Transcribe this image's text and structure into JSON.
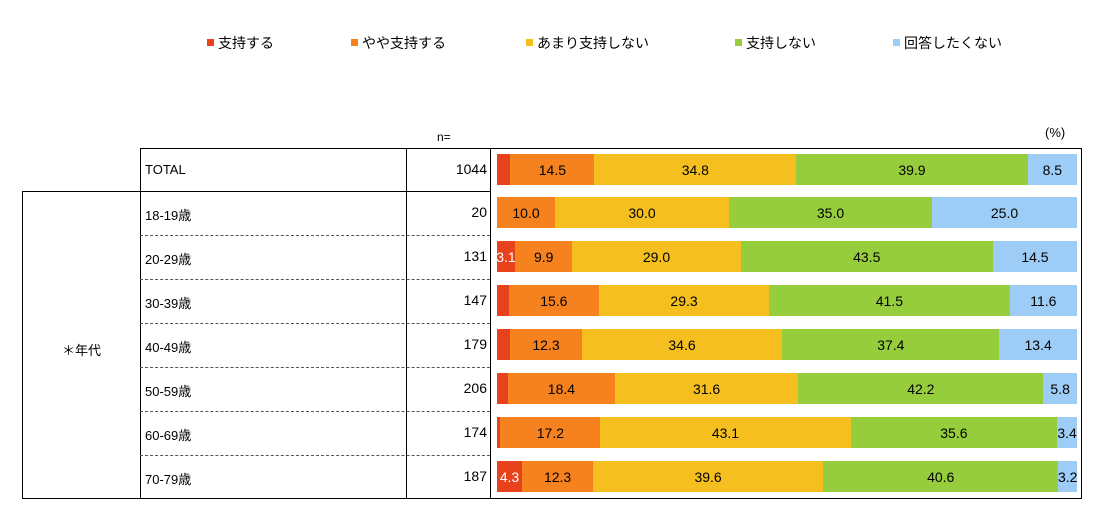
{
  "chart_data": {
    "type": "bar",
    "orientation": "horizontal",
    "stacked": true,
    "unit_label": "(%)",
    "n_header": "n=",
    "group_label": "＊年代",
    "legend": [
      {
        "name": "支持する",
        "color": "#e8421c"
      },
      {
        "name": "やや支持する",
        "color": "#f5821f"
      },
      {
        "name": "あまり支持しない",
        "color": "#f5c01f"
      },
      {
        "name": "支持しない",
        "color": "#96cd3c"
      },
      {
        "name": "回答したくない",
        "color": "#9dcdf7"
      }
    ],
    "categories": [
      "TOTAL",
      "18-19歳",
      "20-29歳",
      "30-39歳",
      "40-49歳",
      "50-59歳",
      "60-69歳",
      "70-79歳"
    ],
    "n": [
      1044,
      20,
      131,
      147,
      179,
      206,
      174,
      187
    ],
    "series": [
      {
        "name": "支持する",
        "values": [
          2.3,
          0,
          3.1,
          2.0,
          2.3,
          1.9,
          0.6,
          4.3
        ]
      },
      {
        "name": "やや支持する",
        "values": [
          14.5,
          10.0,
          9.9,
          15.6,
          12.3,
          18.4,
          17.2,
          12.3
        ]
      },
      {
        "name": "あまり支持しない",
        "values": [
          34.8,
          30.0,
          29.0,
          29.3,
          34.6,
          31.6,
          43.1,
          39.6
        ]
      },
      {
        "name": "支持しない",
        "values": [
          39.9,
          35.0,
          43.5,
          41.5,
          37.4,
          42.2,
          35.6,
          40.6
        ]
      },
      {
        "name": "回答したくない",
        "values": [
          8.5,
          25.0,
          14.5,
          11.6,
          13.4,
          5.8,
          3.4,
          3.2
        ]
      }
    ],
    "labels": [
      [
        "",
        "14.5",
        "34.8",
        "39.9",
        "8.5"
      ],
      [
        "",
        "10.0",
        "30.0",
        "35.0",
        "25.0"
      ],
      [
        "3.1",
        "9.9",
        "29.0",
        "43.5",
        "14.5"
      ],
      [
        "",
        "15.6",
        "29.3",
        "41.5",
        "11.6"
      ],
      [
        "",
        "12.3",
        "34.6",
        "37.4",
        "13.4"
      ],
      [
        "",
        "18.4",
        "31.6",
        "42.2",
        "5.8"
      ],
      [
        "",
        "17.2",
        "43.1",
        "35.6",
        "3.4"
      ],
      [
        "4.3",
        "12.3",
        "39.6",
        "40.6",
        "3.2"
      ]
    ]
  }
}
